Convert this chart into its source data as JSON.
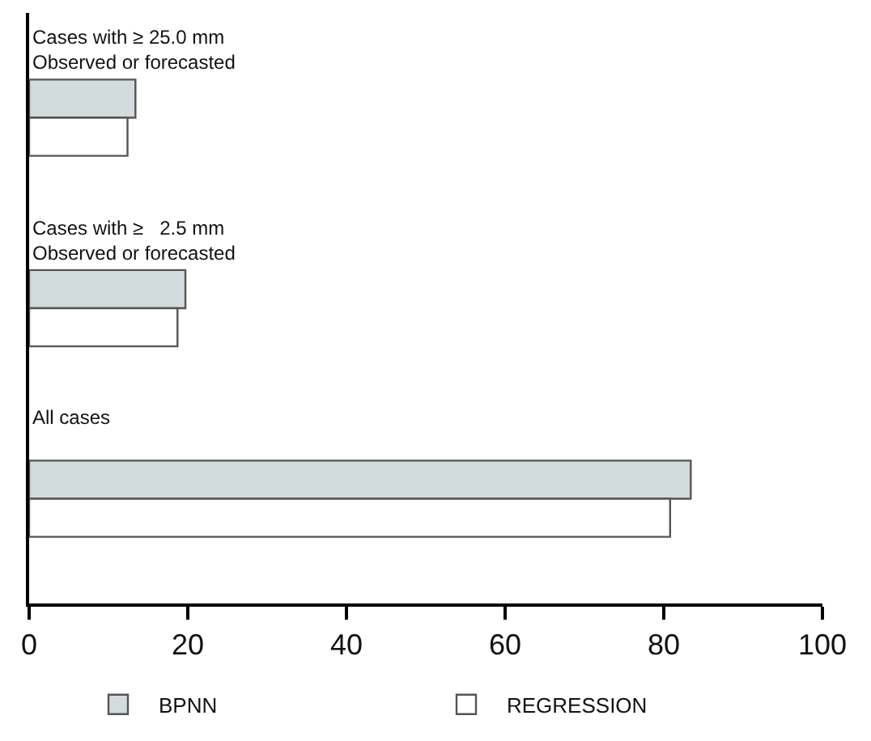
{
  "chart_data": {
    "type": "bar",
    "orientation": "horizontal",
    "categories": [
      "Cases with ≥ 25.0 mm\nObserved or forecasted",
      "Cases with ≥   2.5 mm\nObserved or forecasted",
      "All cases"
    ],
    "series": [
      {
        "name": "BPNN",
        "color": "#d3dcdc",
        "values": [
          13.4,
          19.7,
          83.4
        ]
      },
      {
        "name": "REGRESSION",
        "color": "#ffffff",
        "values": [
          12.4,
          18.7,
          80.8
        ]
      }
    ],
    "xlim": [
      0,
      100
    ],
    "xticks": [
      0,
      20,
      40,
      60,
      80,
      100
    ],
    "legend": "bottom"
  }
}
